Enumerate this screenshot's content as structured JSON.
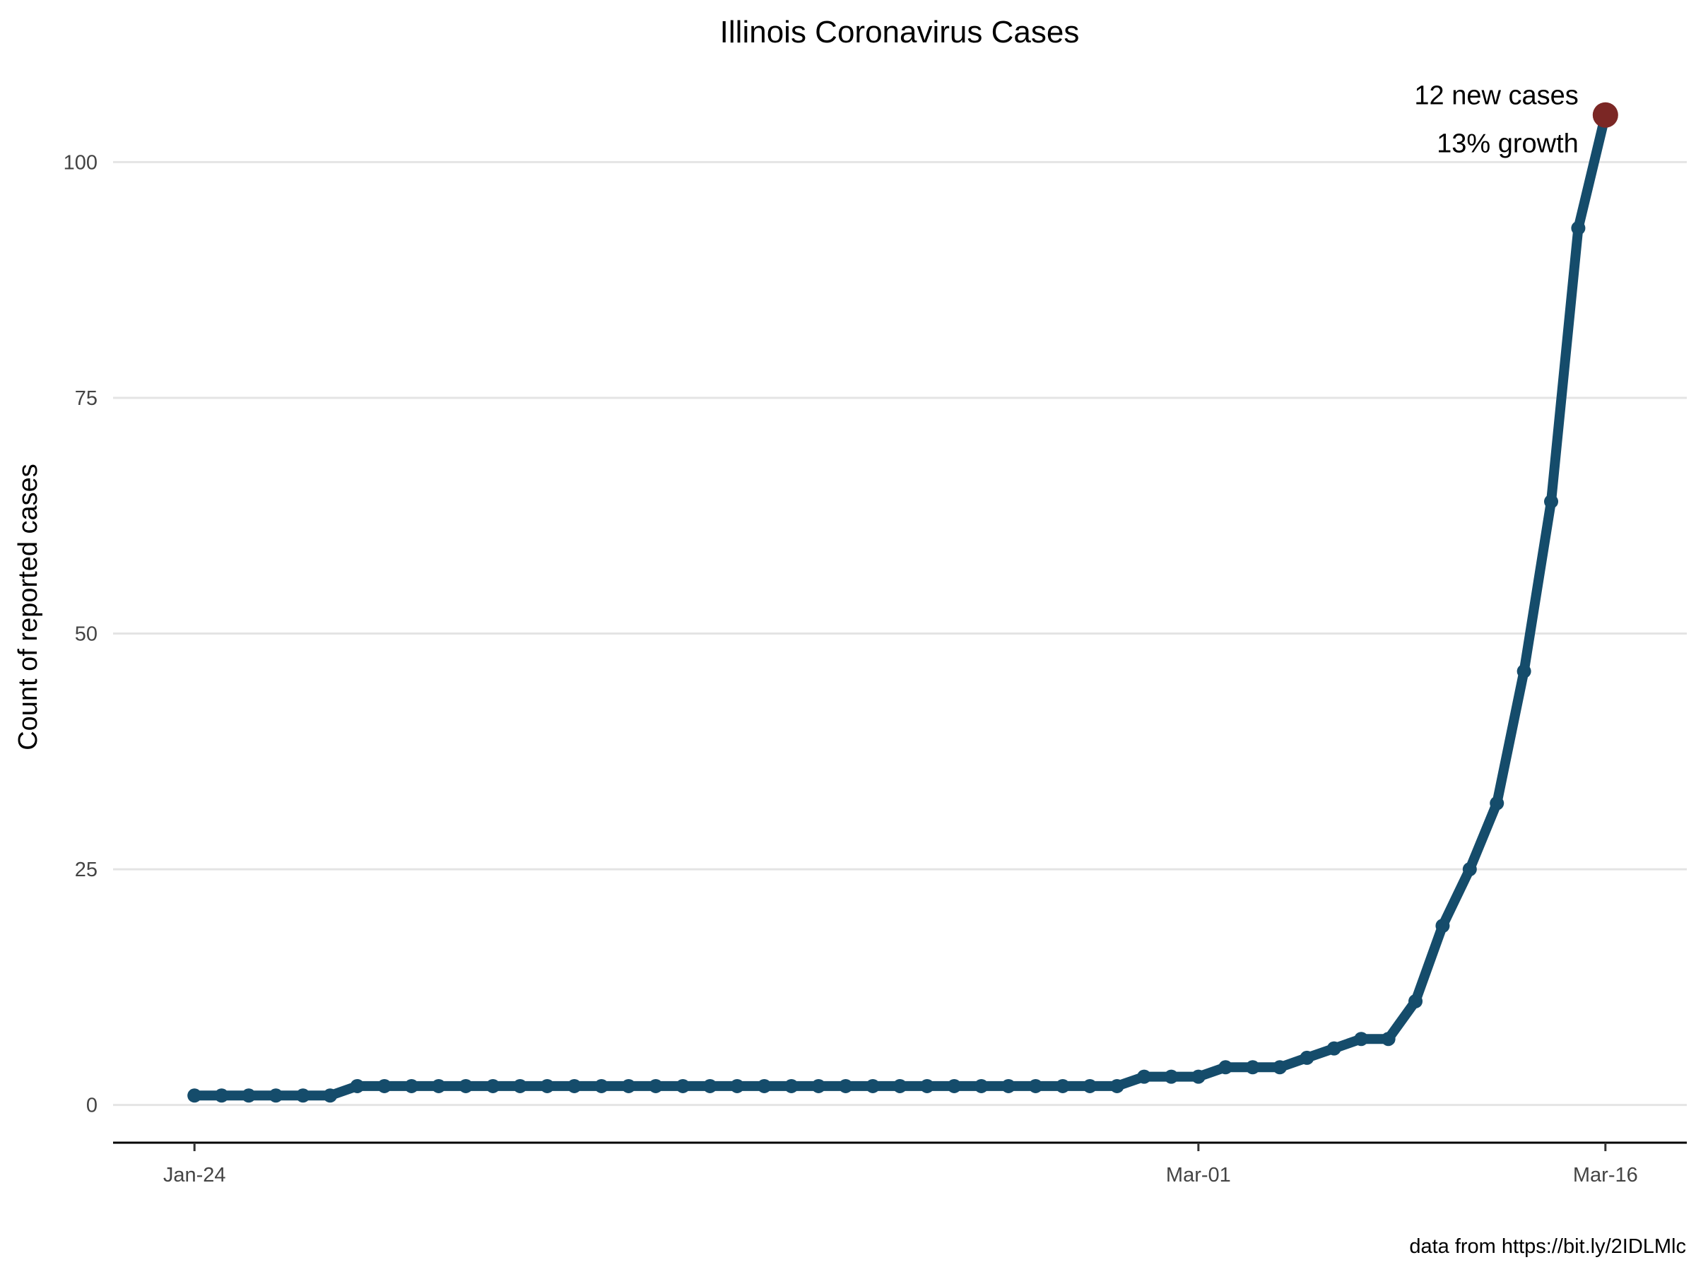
{
  "chart_data": {
    "type": "line",
    "title": "Illinois Coronavirus Cases",
    "xlabel": "",
    "ylabel": "Count of reported cases",
    "caption": "data from https://bit.ly/2IDLMlc",
    "x_range": [
      "2020-01-21",
      "2020-03-19"
    ],
    "ylim": [
      -4,
      110
    ],
    "x_ticks": [
      {
        "date": "2020-01-24",
        "label": "Jan-24"
      },
      {
        "date": "2020-03-01",
        "label": "Mar-01"
      },
      {
        "date": "2020-03-16",
        "label": "Mar-16"
      }
    ],
    "y_ticks": [
      {
        "value": 0,
        "label": "0"
      },
      {
        "value": 25,
        "label": "25"
      },
      {
        "value": 50,
        "label": "50"
      },
      {
        "value": 75,
        "label": "75"
      },
      {
        "value": 100,
        "label": "100"
      }
    ],
    "grid": "horizontal",
    "series": [
      {
        "color": "#154c6b",
        "x": [
          "2020-01-24",
          "2020-01-25",
          "2020-01-26",
          "2020-01-27",
          "2020-01-28",
          "2020-01-29",
          "2020-01-30",
          "2020-01-31",
          "2020-02-01",
          "2020-02-02",
          "2020-02-03",
          "2020-02-04",
          "2020-02-05",
          "2020-02-06",
          "2020-02-07",
          "2020-02-08",
          "2020-02-09",
          "2020-02-10",
          "2020-02-11",
          "2020-02-12",
          "2020-02-13",
          "2020-02-14",
          "2020-02-15",
          "2020-02-16",
          "2020-02-17",
          "2020-02-18",
          "2020-02-19",
          "2020-02-20",
          "2020-02-21",
          "2020-02-22",
          "2020-02-23",
          "2020-02-24",
          "2020-02-25",
          "2020-02-26",
          "2020-02-27",
          "2020-02-28",
          "2020-02-29",
          "2020-03-01",
          "2020-03-02",
          "2020-03-03",
          "2020-03-04",
          "2020-03-05",
          "2020-03-06",
          "2020-03-07",
          "2020-03-08",
          "2020-03-09",
          "2020-03-10",
          "2020-03-11",
          "2020-03-12",
          "2020-03-13",
          "2020-03-14",
          "2020-03-15",
          "2020-03-16"
        ],
        "values": [
          1,
          1,
          1,
          1,
          1,
          1,
          2,
          2,
          2,
          2,
          2,
          2,
          2,
          2,
          2,
          2,
          2,
          2,
          2,
          2,
          2,
          2,
          2,
          2,
          2,
          2,
          2,
          2,
          2,
          2,
          2,
          2,
          2,
          2,
          2,
          3,
          3,
          3,
          4,
          4,
          4,
          5,
          6,
          7,
          7,
          11,
          19,
          25,
          32,
          46,
          64,
          93,
          105
        ]
      }
    ],
    "highlight": {
      "date": "2020-03-16",
      "value": 105,
      "color": "#7b2725",
      "label_line1": "12 new cases",
      "label_line2": "13% growth"
    }
  }
}
